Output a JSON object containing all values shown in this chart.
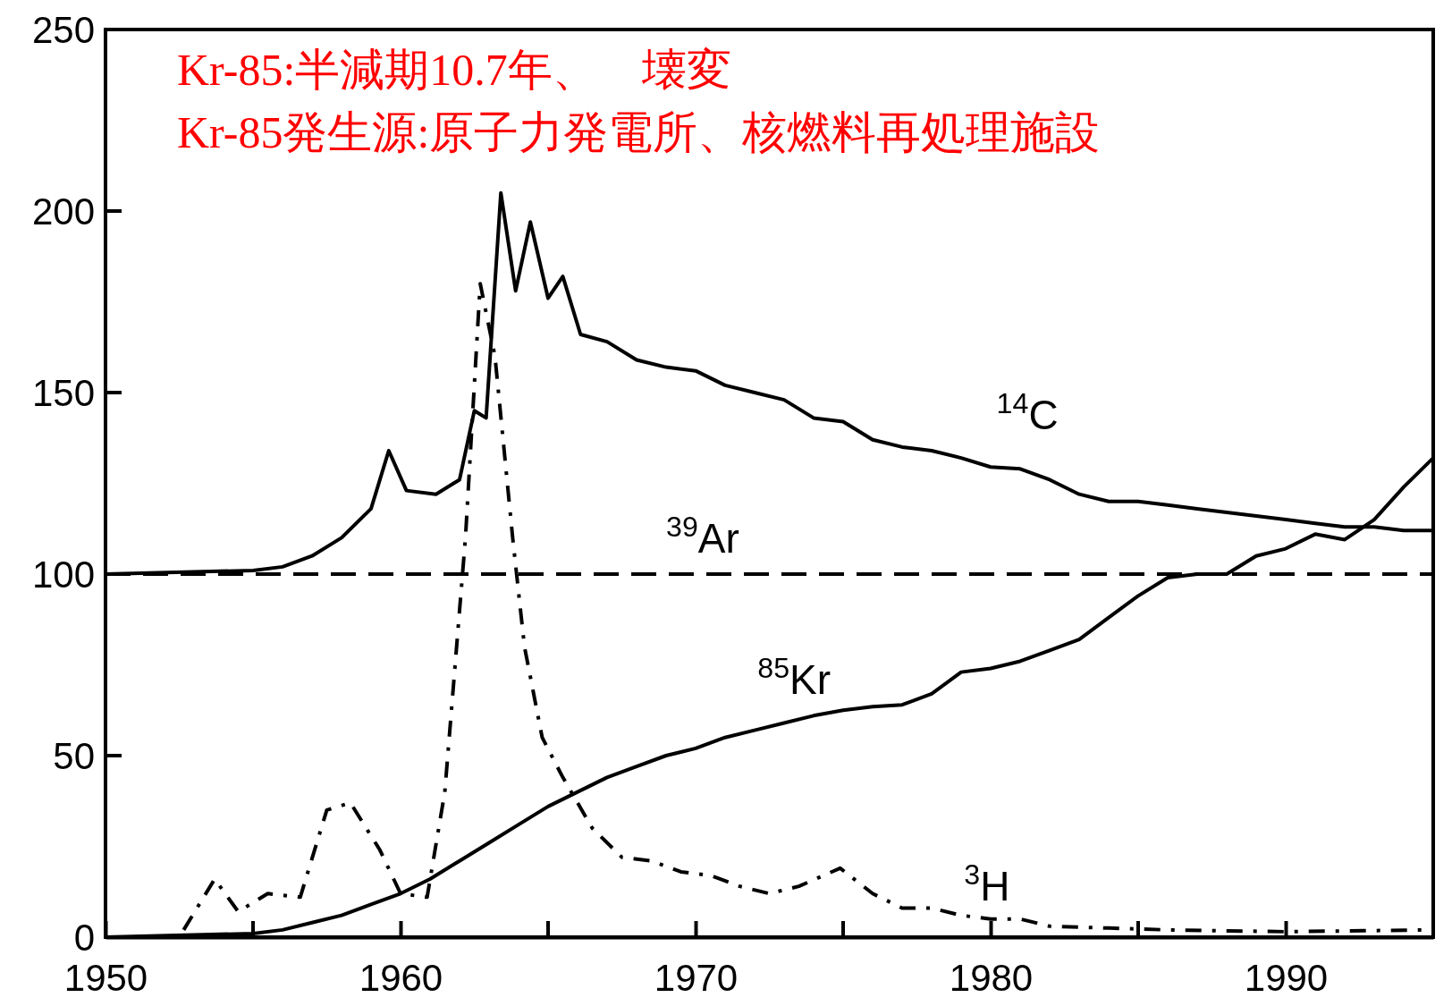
{
  "chart_data": {
    "type": "line",
    "annotations": [
      "Kr-85:半減期10.7年、　壊変",
      "Kr-85発生源:原子力発電所、核燃料再処理施設"
    ],
    "xlim": [
      1950,
      1995
    ],
    "xticks": [
      1950,
      1960,
      1970,
      1980,
      1990
    ],
    "ylim": [
      0,
      250
    ],
    "yticks": [
      0,
      50,
      100,
      150,
      200,
      250
    ],
    "grid": false,
    "series": [
      {
        "name": "$^{14}$C",
        "color": "#000000",
        "line_style": "solid",
        "x": [
          1950,
          1955,
          1956,
          1957,
          1958,
          1959,
          1959.6,
          1960.2,
          1961.2,
          1962,
          1962.5,
          1962.9,
          1963.4,
          1963.9,
          1964.4,
          1965,
          1965.5,
          1966.1,
          1967,
          1968,
          1969,
          1970,
          1971,
          1972,
          1973,
          1974,
          1975,
          1976,
          1977,
          1978,
          1979,
          1980,
          1981,
          1982,
          1983,
          1984,
          1985,
          1986,
          1987,
          1988,
          1989,
          1990,
          1991,
          1992,
          1993,
          1994,
          1995
        ],
        "values": [
          100,
          101,
          102,
          105,
          110,
          118,
          134,
          123,
          122,
          126,
          145,
          143,
          205,
          178,
          197,
          176,
          182,
          166,
          164,
          159,
          157,
          156,
          152,
          150,
          148,
          143,
          142,
          137,
          135,
          134,
          132,
          129.5,
          129,
          126,
          122,
          120,
          120,
          119,
          118,
          117,
          116,
          115,
          114,
          113,
          113,
          112,
          112
        ]
      },
      {
        "name": "$^{39}$Ar",
        "color": "#000000",
        "line_style": "dashed",
        "x": [
          1950,
          1995
        ],
        "values": [
          100,
          100
        ]
      },
      {
        "name": "$^{85}$Kr",
        "color": "#000000",
        "line_style": "solid",
        "x": [
          1950,
          1955,
          1956,
          1957,
          1958,
          1959,
          1960,
          1961,
          1962,
          1963,
          1964,
          1965,
          1966,
          1967,
          1968,
          1969,
          1970,
          1971,
          1972,
          1973,
          1974,
          1975,
          1976,
          1977,
          1978,
          1979,
          1980,
          1981,
          1982,
          1983,
          1984,
          1985,
          1986,
          1987,
          1988,
          1989,
          1990,
          1991,
          1992,
          1993,
          1994,
          1995
        ],
        "values": [
          0,
          1,
          2,
          4,
          6,
          9,
          12,
          16,
          21,
          26,
          31,
          36,
          40,
          44,
          47,
          50,
          52,
          55,
          57,
          59,
          61,
          62.5,
          63.5,
          64,
          67,
          73,
          74,
          76,
          79,
          82,
          88,
          94,
          99,
          100,
          100,
          105,
          107,
          111,
          109.5,
          115,
          124,
          132
        ]
      },
      {
        "name": "$^{3}$H",
        "color": "#000000",
        "line_style": "dashdot",
        "x": [
          1950,
          1952.5,
          1953.7,
          1954.5,
          1955.5,
          1956.6,
          1957.5,
          1958.3,
          1959.3,
          1960,
          1960.9,
          1961.5,
          1962.2,
          1962.7,
          1963.2,
          1963.8,
          1964.2,
          1964.8,
          1965.5,
          1966.5,
          1967.5,
          1968.5,
          1969.5,
          1970.5,
          1971.5,
          1972.5,
          1973.5,
          1974.9,
          1976,
          1977,
          1978,
          1979,
          1980,
          1981,
          1982,
          1984,
          1986,
          1990,
          1995
        ],
        "values": [
          0,
          0,
          16,
          7,
          12,
          11,
          35,
          37,
          24,
          12,
          11,
          40,
          110,
          180,
          160,
          110,
          80,
          55,
          44,
          30,
          22,
          21,
          18,
          17,
          14,
          12,
          14,
          19,
          12,
          8,
          8,
          6,
          5,
          5,
          3,
          2.5,
          2,
          1.5,
          2
        ]
      }
    ]
  }
}
